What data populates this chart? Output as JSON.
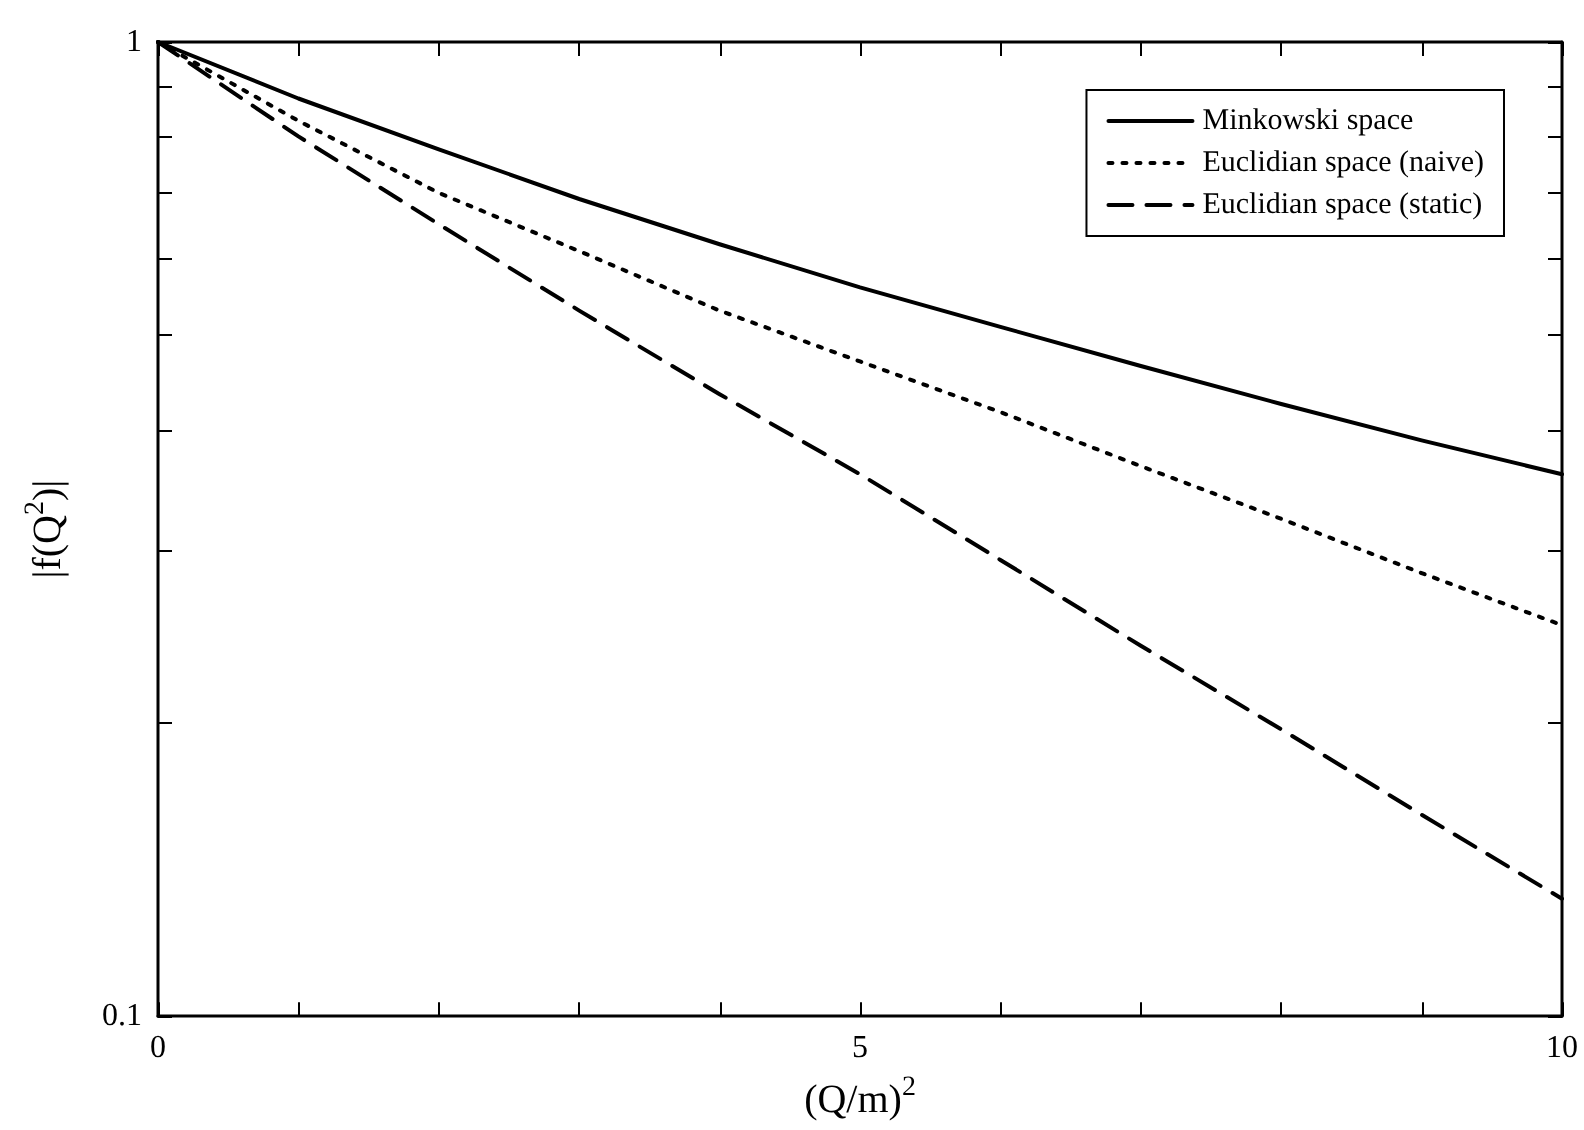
{
  "chart_data": {
    "type": "line",
    "xlabel": "(Q/m)$^{2}$",
    "ylabel": "|f(Q$^{2}$)|",
    "x": [
      0,
      1,
      2,
      3,
      4,
      5,
      6,
      7,
      8,
      9,
      10
    ],
    "series": [
      {
        "name": "Minkowski space",
        "color": "#000000",
        "line_style": "solid",
        "values": [
          1,
          0.875,
          0.776,
          0.69,
          0.62,
          0.56,
          0.51,
          0.465,
          0.425,
          0.39,
          0.36
        ]
      },
      {
        "name": "Euclidian space (naive)",
        "color": "#000000",
        "line_style": "dotted",
        "values": [
          1,
          0.83,
          0.7,
          0.61,
          0.53,
          0.47,
          0.417,
          0.367,
          0.324,
          0.285,
          0.252
        ]
      },
      {
        "name": "Euclidian space (static)",
        "color": "#000000",
        "line_style": "dashed",
        "values": [
          1,
          0.8,
          0.65,
          0.53,
          0.435,
          0.36,
          0.294,
          0.24,
          0.197,
          0.161,
          0.132
        ]
      }
    ],
    "log": "y",
    "xlim": [
      0,
      10
    ],
    "ylim": [
      0.1,
      1
    ],
    "xticks": [
      0,
      {
        "value": 1,
        "label": null
      },
      {
        "value": 2,
        "label": null
      },
      {
        "value": 3,
        "label": null
      },
      {
        "value": 4,
        "label": null
      },
      5,
      {
        "value": 6,
        "label": null
      },
      {
        "value": 7,
        "label": null
      },
      {
        "value": 8,
        "label": null
      },
      {
        "value": 9,
        "label": null
      },
      10
    ],
    "yticks": [
      0.1,
      {
        "value": 0.2,
        "label": null
      },
      {
        "value": 0.3,
        "label": null
      },
      {
        "value": 0.4,
        "label": null
      },
      {
        "value": 0.5,
        "label": null
      },
      {
        "value": 0.6,
        "label": null
      },
      {
        "value": 0.7,
        "label": null
      },
      {
        "value": 0.8,
        "label": null
      },
      {
        "value": 0.9,
        "label": null
      },
      1
    ],
    "grid": false,
    "legend": "top right",
    "marker": "none"
  }
}
